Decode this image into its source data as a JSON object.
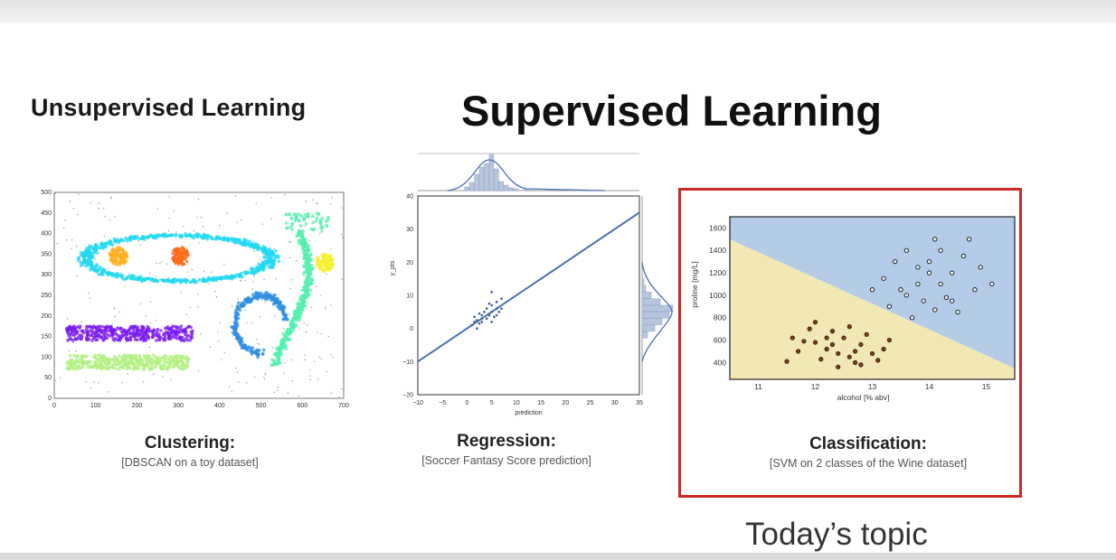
{
  "headings": {
    "unsupervised": "Unsupervised Learning",
    "supervised": "Supervised Learning"
  },
  "panels": [
    {
      "title": "Clustering:",
      "subtitle": "[DBSCAN on a toy dataset]",
      "chart_data": {
        "type": "scatter",
        "x_ticks": [
          "0",
          "100",
          "200",
          "300",
          "400",
          "500",
          "600",
          "700"
        ],
        "y_ticks": [
          "0",
          "50",
          "100",
          "150",
          "200",
          "250",
          "300",
          "350",
          "400",
          "450",
          "500"
        ],
        "xlim": [
          0,
          700
        ],
        "ylim": [
          0,
          500
        ],
        "clusters": [
          {
            "shape": "ellipse-ring",
            "cx": 300,
            "cy": 340,
            "rx": 225,
            "ry": 55,
            "color": "#22d8f0"
          },
          {
            "shape": "blob",
            "cx": 155,
            "cy": 345,
            "rx": 22,
            "ry": 22,
            "color": "#ffb020"
          },
          {
            "shape": "blob",
            "cx": 305,
            "cy": 345,
            "rx": 20,
            "ry": 22,
            "color": "#ff6a1a"
          },
          {
            "shape": "band",
            "x0": 30,
            "x1": 335,
            "y0": 140,
            "y1": 175,
            "color": "#7a1af0"
          },
          {
            "shape": "band",
            "x0": 30,
            "x1": 325,
            "y0": 70,
            "y1": 105,
            "color": "#b0f080"
          },
          {
            "shape": "arc",
            "cx": 500,
            "cy": 180,
            "r": 70,
            "color": "#2f8fe0"
          },
          {
            "shape": "s-curve",
            "x": 600,
            "y_top": 450,
            "y_bottom": 80,
            "color": "#55f0b0"
          },
          {
            "shape": "blob",
            "cx": 655,
            "cy": 330,
            "rx": 22,
            "ry": 22,
            "color": "#f5f030"
          }
        ]
      }
    },
    {
      "title": "Regression:",
      "subtitle": "[Soccer Fantasy Score prediction]",
      "chart_data": {
        "type": "scatter",
        "xlabel": "prediction",
        "ylabel": "y_pts",
        "x_ticks": [
          "−10",
          "−5",
          "0",
          "5",
          "10",
          "15",
          "20",
          "25",
          "30",
          "35"
        ],
        "y_ticks": [
          "40",
          "30",
          "20",
          "10",
          "0",
          "−10",
          "−20"
        ],
        "xlim": [
          -10,
          35
        ],
        "ylim": [
          -20,
          40
        ],
        "fit_line": {
          "x0": -10,
          "y0": -10,
          "x1": 35,
          "y1": 35
        },
        "points": [
          [
            1,
            1
          ],
          [
            1.5,
            2
          ],
          [
            2,
            2.5
          ],
          [
            2.5,
            1.5
          ],
          [
            3,
            3
          ],
          [
            3,
            4
          ],
          [
            3.5,
            5
          ],
          [
            4,
            3
          ],
          [
            4,
            6
          ],
          [
            4.5,
            4
          ],
          [
            5,
            5
          ],
          [
            5,
            7
          ],
          [
            5.5,
            3.5
          ],
          [
            6,
            6
          ],
          [
            6,
            8
          ],
          [
            6.5,
            5
          ],
          [
            7,
            6
          ],
          [
            7,
            9
          ],
          [
            2,
            0
          ],
          [
            3,
            2
          ],
          [
            4.5,
            7.5
          ],
          [
            5,
            2
          ],
          [
            6,
            4
          ],
          [
            1.5,
            3.5
          ],
          [
            2.5,
            4.5
          ],
          [
            5,
            11
          ]
        ],
        "marginal_top": "histogram with density curve",
        "marginal_right": "histogram with density curve"
      }
    },
    {
      "title": "Classification:",
      "subtitle": "[SVM on 2 classes of the Wine dataset]",
      "chart_data": {
        "type": "scatter",
        "xlabel": "alcohol [% abv]",
        "ylabel": "proline [mg/L]",
        "x_ticks": [
          "11",
          "12",
          "13",
          "14",
          "15"
        ],
        "y_ticks": [
          "1600",
          "1400",
          "1200",
          "1000",
          "800",
          "600",
          "400"
        ],
        "xlim": [
          10.5,
          15.5
        ],
        "ylim": [
          250,
          1700
        ],
        "region_colors": {
          "class_a": "#b5cce8",
          "class_b": "#f1e8b5"
        },
        "boundary": {
          "x0": 10.5,
          "y0": 1500,
          "x1": 15.5,
          "y1": 350
        },
        "class_a_points": [
          [
            13.2,
            1150
          ],
          [
            13.5,
            1050
          ],
          [
            13.8,
            1250
          ],
          [
            14.0,
            1300
          ],
          [
            14.2,
            1100
          ],
          [
            14.4,
            1200
          ],
          [
            13.9,
            950
          ],
          [
            14.6,
            1350
          ],
          [
            13.6,
            1400
          ],
          [
            14.1,
            1500
          ],
          [
            14.8,
            1050
          ],
          [
            13.3,
            900
          ],
          [
            14.3,
            980
          ],
          [
            14.5,
            850
          ],
          [
            13.7,
            800
          ],
          [
            15.1,
            1100
          ],
          [
            14.7,
            1500
          ],
          [
            14.0,
            1200
          ],
          [
            13.4,
            1300
          ],
          [
            14.9,
            1250
          ],
          [
            13.0,
            1050
          ],
          [
            14.2,
            1400
          ],
          [
            13.8,
            1100
          ],
          [
            14.4,
            950
          ],
          [
            13.6,
            1000
          ],
          [
            14.1,
            870
          ]
        ],
        "class_b_points": [
          [
            11.6,
            620
          ],
          [
            12.0,
            580
          ],
          [
            12.2,
            520
          ],
          [
            12.4,
            480
          ],
          [
            12.6,
            450
          ],
          [
            12.8,
            560
          ],
          [
            12.3,
            680
          ],
          [
            11.9,
            700
          ],
          [
            12.5,
            620
          ],
          [
            12.7,
            400
          ],
          [
            13.0,
            480
          ],
          [
            12.1,
            430
          ],
          [
            12.9,
            650
          ],
          [
            11.7,
            500
          ],
          [
            12.4,
            360
          ],
          [
            12.6,
            720
          ],
          [
            13.2,
            520
          ],
          [
            12.2,
            620
          ],
          [
            11.5,
            410
          ],
          [
            12.8,
            380
          ],
          [
            13.1,
            420
          ],
          [
            12.0,
            760
          ],
          [
            12.3,
            560
          ],
          [
            12.7,
            500
          ],
          [
            13.3,
            600
          ],
          [
            11.8,
            590
          ]
        ]
      }
    }
  ],
  "footer_label": "Today’s topic"
}
